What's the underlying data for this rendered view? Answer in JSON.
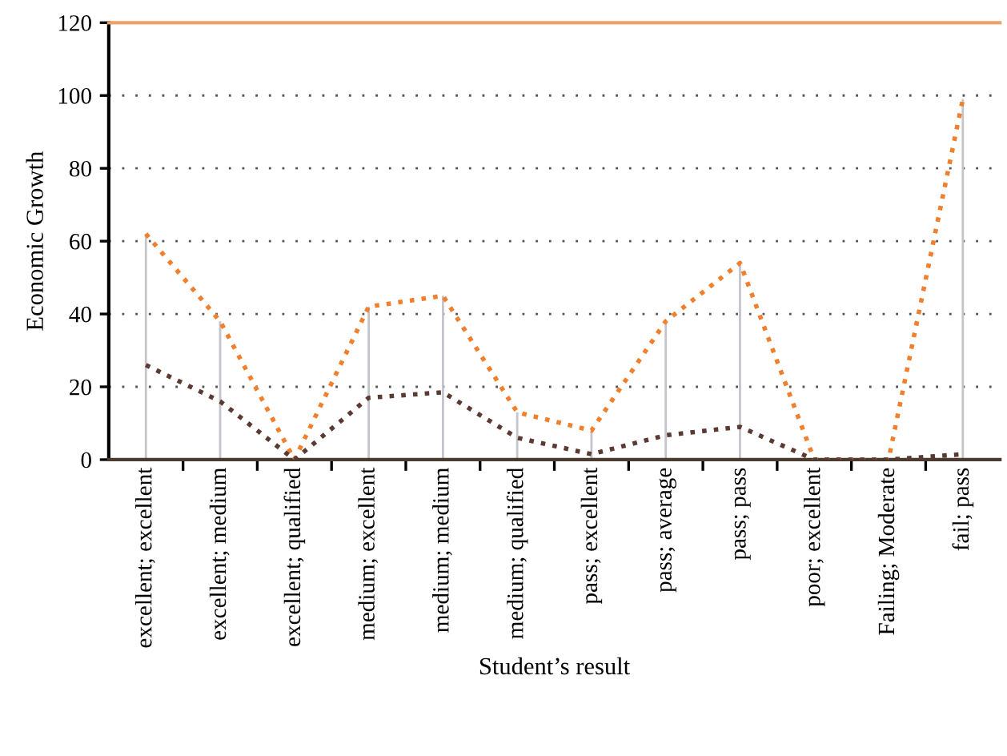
{
  "chart_data": {
    "type": "line",
    "xlabel": "Student’s result",
    "ylabel": "Economic Growth",
    "categories": [
      "excellent; excellent",
      "excellent; medium",
      "excellent; qualified",
      "medium; excellent",
      "medium; medium",
      "medium; qualified",
      "pass; excellent",
      "pass; average",
      "pass; pass",
      "poor; excellent",
      "Failing; Moderate",
      "fail; pass"
    ],
    "series": [
      {
        "type": "bar",
        "color": "#c4c4cc",
        "values": [
          62,
          38,
          0,
          42,
          45,
          13,
          8,
          38,
          54,
          0,
          0,
          99
        ]
      },
      {
        "color": "#f07f2e",
        "line_style": "dotted",
        "values": [
          62,
          38,
          0,
          42,
          45,
          13,
          8,
          38,
          54,
          0,
          0,
          99
        ]
      },
      {
        "color": "#5a3a32",
        "line_style": "dotted",
        "values": [
          26,
          16,
          0,
          17,
          18.5,
          6,
          1.5,
          6.7,
          9,
          0,
          0,
          1.5
        ]
      }
    ],
    "ylim": [
      0,
      120
    ],
    "yticks": [
      0,
      20,
      40,
      60,
      80,
      100,
      120
    ],
    "grid": "y",
    "ref_lines": [
      {
        "axis": "y",
        "value": 120,
        "color": "#e8a36a"
      }
    ]
  }
}
